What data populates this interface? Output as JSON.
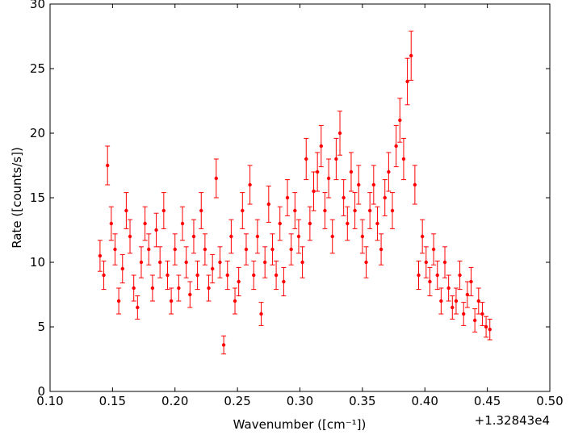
{
  "chart_data": {
    "type": "scatter",
    "xlabel": "Wavenumber ([cm⁻¹])",
    "ylabel": "Rate ([counts/s])",
    "x_offset_label": "+1.32843e4",
    "color": "#ff0000",
    "xlim": [
      0.1,
      0.5
    ],
    "ylim": [
      0,
      30
    ],
    "xticks": [
      {
        "value": 0.1,
        "label": "0.10"
      },
      {
        "value": 0.15,
        "label": "0.15"
      },
      {
        "value": 0.2,
        "label": "0.20"
      },
      {
        "value": 0.25,
        "label": "0.25"
      },
      {
        "value": 0.3,
        "label": "0.30"
      },
      {
        "value": 0.35,
        "label": "0.35"
      },
      {
        "value": 0.4,
        "label": "0.40"
      },
      {
        "value": 0.45,
        "label": "0.45"
      },
      {
        "value": 0.5,
        "label": "0.50"
      }
    ],
    "yticks": [
      0,
      5,
      10,
      15,
      20,
      25,
      30
    ],
    "x": [
      0.14,
      0.143,
      0.146,
      0.149,
      0.152,
      0.155,
      0.158,
      0.161,
      0.164,
      0.167,
      0.17,
      0.173,
      0.176,
      0.179,
      0.182,
      0.185,
      0.188,
      0.191,
      0.194,
      0.197,
      0.2,
      0.203,
      0.206,
      0.209,
      0.212,
      0.215,
      0.218,
      0.221,
      0.224,
      0.227,
      0.23,
      0.233,
      0.236,
      0.239,
      0.242,
      0.245,
      0.248,
      0.251,
      0.254,
      0.257,
      0.26,
      0.263,
      0.266,
      0.269,
      0.272,
      0.275,
      0.278,
      0.281,
      0.284,
      0.287,
      0.29,
      0.293,
      0.296,
      0.299,
      0.302,
      0.305,
      0.308,
      0.311,
      0.314,
      0.317,
      0.32,
      0.323,
      0.326,
      0.329,
      0.332,
      0.335,
      0.338,
      0.341,
      0.344,
      0.347,
      0.35,
      0.353,
      0.356,
      0.359,
      0.362,
      0.365,
      0.368,
      0.371,
      0.374,
      0.377,
      0.38,
      0.383,
      0.386,
      0.389,
      0.392,
      0.395,
      0.398,
      0.401,
      0.404,
      0.407,
      0.41,
      0.413,
      0.416,
      0.419,
      0.422,
      0.425,
      0.428,
      0.431,
      0.434,
      0.437,
      0.44,
      0.443,
      0.446,
      0.449,
      0.452
    ],
    "values": [
      10.5,
      9,
      17.5,
      13,
      11,
      7,
      9.5,
      14,
      12,
      8,
      6.5,
      10,
      13,
      11,
      8,
      12.5,
      10,
      14,
      9,
      7,
      11,
      8,
      13,
      10,
      7.5,
      12,
      9,
      14,
      11,
      8,
      9.5,
      16.5,
      10,
      3.6,
      9,
      12,
      7,
      8.5,
      14,
      11,
      16,
      9,
      12,
      6,
      10,
      14.5,
      11,
      9,
      13,
      8.5,
      15,
      11,
      14,
      12,
      10,
      18,
      13,
      15.5,
      17,
      19,
      14,
      16.5,
      12,
      18,
      20,
      15,
      13,
      17,
      14,
      16,
      12,
      10,
      14,
      16,
      13,
      11,
      15,
      17,
      14,
      19,
      21,
      18,
      24,
      26,
      16,
      9,
      12,
      10,
      8.5,
      11,
      9,
      7,
      10,
      8,
      6.5,
      7,
      9,
      6,
      7.5,
      8.5,
      5.5,
      7,
      6,
      5,
      4.8
    ],
    "errors": [
      1.2,
      1.1,
      1.5,
      1.3,
      1.2,
      1.0,
      1.1,
      1.4,
      1.3,
      1.0,
      0.9,
      1.2,
      1.3,
      1.2,
      1.0,
      1.3,
      1.2,
      1.4,
      1.1,
      1.0,
      1.2,
      1.0,
      1.3,
      1.2,
      1.0,
      1.3,
      1.1,
      1.4,
      1.2,
      1.0,
      1.1,
      1.5,
      1.2,
      0.7,
      1.1,
      1.3,
      1.0,
      1.1,
      1.4,
      1.2,
      1.5,
      1.1,
      1.3,
      0.9,
      1.2,
      1.4,
      1.2,
      1.1,
      1.3,
      1.1,
      1.4,
      1.2,
      1.4,
      1.3,
      1.2,
      1.6,
      1.3,
      1.5,
      1.5,
      1.6,
      1.4,
      1.5,
      1.3,
      1.6,
      1.7,
      1.4,
      1.3,
      1.5,
      1.4,
      1.5,
      1.3,
      1.2,
      1.4,
      1.5,
      1.3,
      1.2,
      1.4,
      1.5,
      1.4,
      1.6,
      1.7,
      1.6,
      1.8,
      1.9,
      1.5,
      1.1,
      1.3,
      1.2,
      1.1,
      1.2,
      1.1,
      1.0,
      1.2,
      1.0,
      0.9,
      1.0,
      1.1,
      0.9,
      1.0,
      1.1,
      0.9,
      1.0,
      0.9,
      0.8,
      0.8
    ]
  }
}
